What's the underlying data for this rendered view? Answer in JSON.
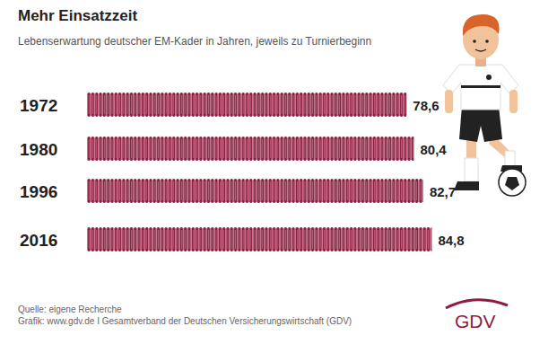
{
  "chart_data": {
    "type": "bar",
    "orientation": "horizontal",
    "title": "Mehr Einsatzzeit",
    "subtitle": "Lebenserwartung deutscher EM-Kader in Jahren, jeweils zu Turnierbeginn",
    "categories": [
      "1972",
      "1980",
      "1996",
      "2016"
    ],
    "values": [
      78.6,
      80.4,
      82.7,
      84.8
    ],
    "value_labels": [
      "78,6",
      "80,4",
      "82,7",
      "84,8"
    ],
    "color": "#8e1c3f",
    "xlim": [
      0,
      90
    ],
    "data_labels": true,
    "tick_labels": "y",
    "grid": false,
    "source": "Quelle: eigene Recherche",
    "credit": "Grafik: www.gdv.de I Gesamtverband der Deutschen Versicherungswirtschaft (GDV)",
    "logo": "GDV"
  }
}
